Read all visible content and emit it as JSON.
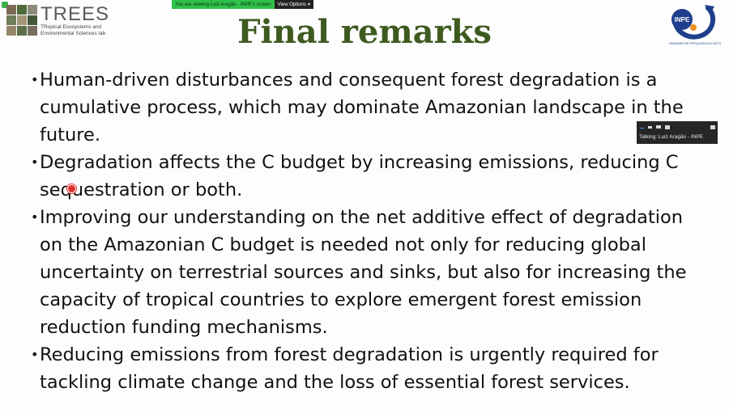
{
  "share_banner": {
    "viewing_text": "You are viewing Luiz Aragão - INPE's screen",
    "view_options_label": "View Options"
  },
  "trees_logo": {
    "name": "TREES",
    "subtitle_line1": "TRopical Ecosystems and",
    "subtitle_line2": "Environmental Sciences lab"
  },
  "inpe_logo": {
    "name": "INPE",
    "caption": "UNIDADE DE PESQUISA DO MCTI"
  },
  "slide": {
    "title": "Final remarks",
    "bullets": [
      "Human-driven disturbances and consequent forest degradation is a cumulative process, which may dominate Amazonian landscape in the future.",
      "Degradation affects the C budget by increasing emissions, reducing C sequestration or both.",
      "Improving our understanding on the net additive effect of degradation on the Amazonian C budget is needed not only for reducing global uncertainty on terrestrial sources and sinks, but also for increasing the capacity of tropical countries to explore emergent forest emission reduction funding mechanisms.",
      "Reducing emissions from forest degradation is urgently required for tackling climate change and the loss of essential forest services."
    ]
  },
  "talk_panel": {
    "label": "Talking: Luiz Aragão - INPE"
  },
  "colors": {
    "title": "#3e5a1f",
    "share_green": "#2fc24a",
    "panel_bg": "#262626",
    "inpe_blue": "#1f3f8c",
    "inpe_orange": "#f0901e"
  }
}
